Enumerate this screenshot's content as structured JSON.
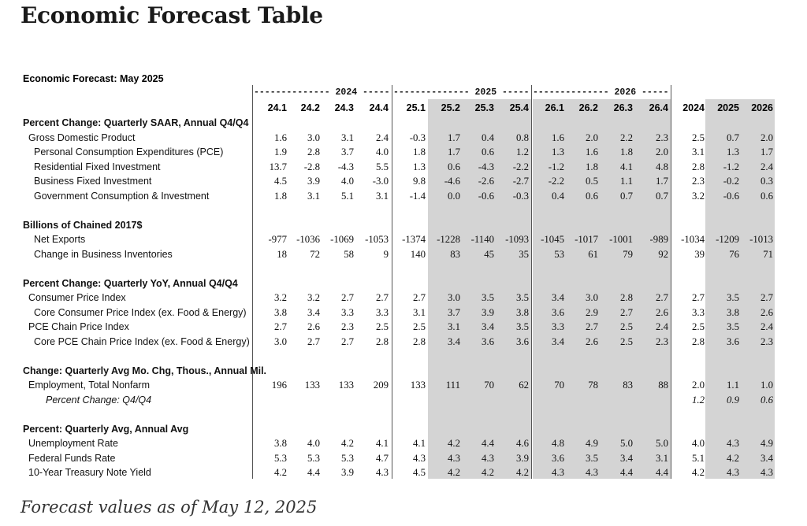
{
  "page_title": "Economic Forecast Table",
  "caption": "Forecast values as of May 12, 2025",
  "table": {
    "title": "Economic Forecast: May 2025",
    "year_groups": [
      {
        "label": "-------------- 2024 --------------"
      },
      {
        "label": "-------------- 2025 --------------"
      },
      {
        "label": "-------------- 2026 --------------"
      }
    ],
    "columns": [
      "24.1",
      "24.2",
      "24.3",
      "24.4",
      "25.1",
      "25.2",
      "25.3",
      "25.4",
      "26.1",
      "26.2",
      "26.3",
      "26.4",
      "2024",
      "2025",
      "2026"
    ],
    "rows": [
      {
        "type": "section",
        "label": "Percent Change: Quarterly SAAR, Annual Q4/Q4",
        "values": []
      },
      {
        "type": "l1",
        "label": "Gross Domestic Product",
        "values": [
          "1.6",
          "3.0",
          "3.1",
          "2.4",
          "-0.3",
          "1.7",
          "0.4",
          "0.8",
          "1.6",
          "2.0",
          "2.2",
          "2.3",
          "2.5",
          "0.7",
          "2.0"
        ]
      },
      {
        "type": "l2",
        "label": "Personal Consumption Expenditures (PCE)",
        "values": [
          "1.9",
          "2.8",
          "3.7",
          "4.0",
          "1.8",
          "1.7",
          "0.6",
          "1.2",
          "1.3",
          "1.6",
          "1.8",
          "2.0",
          "3.1",
          "1.3",
          "1.7"
        ]
      },
      {
        "type": "l2",
        "label": "Residential Fixed Investment",
        "values": [
          "13.7",
          "-2.8",
          "-4.3",
          "5.5",
          "1.3",
          "0.6",
          "-4.3",
          "-2.2",
          "-1.2",
          "1.8",
          "4.1",
          "4.8",
          "2.8",
          "-1.2",
          "2.4"
        ]
      },
      {
        "type": "l2",
        "label": "Business Fixed Investment",
        "values": [
          "4.5",
          "3.9",
          "4.0",
          "-3.0",
          "9.8",
          "-4.6",
          "-2.6",
          "-2.7",
          "-2.2",
          "0.5",
          "1.1",
          "1.7",
          "2.3",
          "-0.2",
          "0.3"
        ]
      },
      {
        "type": "l2",
        "label": "Government Consumption & Investment",
        "values": [
          "1.8",
          "3.1",
          "5.1",
          "3.1",
          "-1.4",
          "0.0",
          "-0.6",
          "-0.3",
          "0.4",
          "0.6",
          "0.7",
          "0.7",
          "3.2",
          "-0.6",
          "0.6"
        ]
      },
      {
        "type": "spacer",
        "label": "",
        "values": []
      },
      {
        "type": "section",
        "label": "Billions of Chained 2017$",
        "values": []
      },
      {
        "type": "l2",
        "label": "Net Exports",
        "values": [
          "-977",
          "-1036",
          "-1069",
          "-1053",
          "-1374",
          "-1228",
          "-1140",
          "-1093",
          "-1045",
          "-1017",
          "-1001",
          "-989",
          "-1034",
          "-1209",
          "-1013"
        ]
      },
      {
        "type": "l2",
        "label": "Change in Business Inventories",
        "values": [
          "18",
          "72",
          "58",
          "9",
          "140",
          "83",
          "45",
          "35",
          "53",
          "61",
          "79",
          "92",
          "39",
          "76",
          "71"
        ]
      },
      {
        "type": "spacer",
        "label": "",
        "values": []
      },
      {
        "type": "section",
        "label": "Percent Change: Quarterly YoY, Annual Q4/Q4",
        "values": []
      },
      {
        "type": "l1",
        "label": "Consumer Price Index",
        "values": [
          "3.2",
          "3.2",
          "2.7",
          "2.7",
          "2.7",
          "3.0",
          "3.5",
          "3.5",
          "3.4",
          "3.0",
          "2.8",
          "2.7",
          "2.7",
          "3.5",
          "2.7"
        ]
      },
      {
        "type": "l2",
        "label": "Core Consumer Price Index (ex. Food & Energy)",
        "values": [
          "3.8",
          "3.4",
          "3.3",
          "3.3",
          "3.1",
          "3.7",
          "3.9",
          "3.8",
          "3.6",
          "2.9",
          "2.7",
          "2.6",
          "3.3",
          "3.8",
          "2.6"
        ]
      },
      {
        "type": "l1",
        "label": "PCE Chain Price Index",
        "values": [
          "2.7",
          "2.6",
          "2.3",
          "2.5",
          "2.5",
          "3.1",
          "3.4",
          "3.5",
          "3.3",
          "2.7",
          "2.5",
          "2.4",
          "2.5",
          "3.5",
          "2.4"
        ]
      },
      {
        "type": "l2",
        "label": "Core PCE Chain Price Index (ex. Food & Energy)",
        "values": [
          "3.0",
          "2.7",
          "2.7",
          "2.8",
          "2.8",
          "3.4",
          "3.6",
          "3.6",
          "3.4",
          "2.6",
          "2.5",
          "2.3",
          "2.8",
          "3.6",
          "2.3"
        ]
      },
      {
        "type": "spacer",
        "label": "",
        "values": []
      },
      {
        "type": "section",
        "label": "Change: Quarterly Avg Mo. Chg, Thous., Annual Mil.",
        "values": []
      },
      {
        "type": "l1",
        "label": "Employment, Total Nonfarm",
        "values": [
          "196",
          "133",
          "133",
          "209",
          "133",
          "111",
          "70",
          "62",
          "70",
          "78",
          "83",
          "88",
          "2.0",
          "1.1",
          "1.0"
        ]
      },
      {
        "type": "l2i",
        "label": "Percent Change: Q4/Q4",
        "values": [
          "",
          "",
          "",
          "",
          "",
          "",
          "",
          "",
          "",
          "",
          "",
          "",
          "1.2",
          "0.9",
          "0.6"
        ]
      },
      {
        "type": "spacer",
        "label": "",
        "values": []
      },
      {
        "type": "section",
        "label": "Percent: Quarterly Avg, Annual Avg",
        "values": []
      },
      {
        "type": "l1",
        "label": "Unemployment Rate",
        "values": [
          "3.8",
          "4.0",
          "4.2",
          "4.1",
          "4.1",
          "4.2",
          "4.4",
          "4.6",
          "4.8",
          "4.9",
          "5.0",
          "5.0",
          "4.0",
          "4.3",
          "4.9"
        ]
      },
      {
        "type": "l1",
        "label": "Federal Funds Rate",
        "values": [
          "5.3",
          "5.3",
          "5.3",
          "4.7",
          "4.3",
          "4.3",
          "4.3",
          "3.9",
          "3.6",
          "3.5",
          "3.4",
          "3.1",
          "5.1",
          "4.2",
          "3.4"
        ]
      },
      {
        "type": "l1",
        "label": "10-Year Treasury Note Yield",
        "values": [
          "4.2",
          "4.4",
          "3.9",
          "4.3",
          "4.5",
          "4.2",
          "4.2",
          "4.2",
          "4.3",
          "4.3",
          "4.4",
          "4.4",
          "4.2",
          "4.3",
          "4.3"
        ]
      }
    ],
    "colors": {
      "forecast_shade": "#d4d4d4",
      "divider": "#555555",
      "text": "#111111"
    }
  }
}
